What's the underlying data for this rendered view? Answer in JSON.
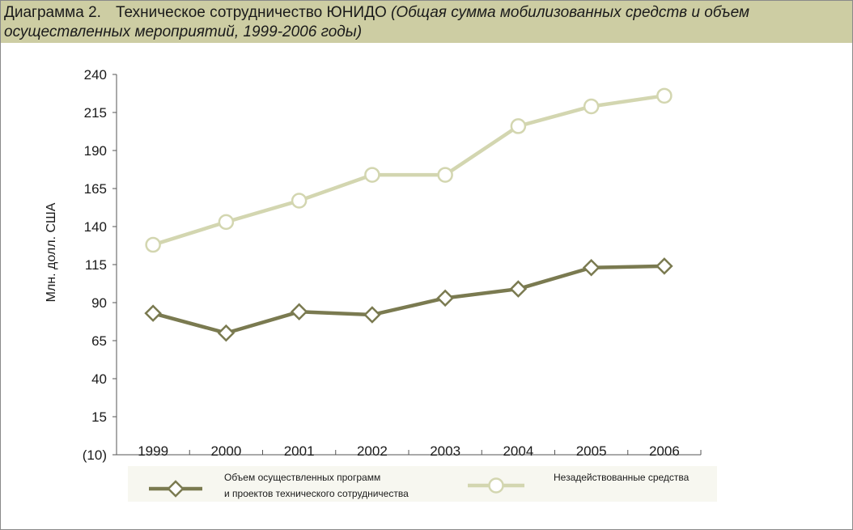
{
  "title": {
    "number": "Диаграмма 2.",
    "main": "Техническое сотрудничество ЮНИДО",
    "subtitle": "(Общая сумма мобилизованных средств и объем осуществленных мероприятий, 1999-2006 годы)"
  },
  "colors": {
    "dark_series": "#7a7a50",
    "light_series": "#d3d6b0",
    "legend_bg": "#f7f7f0",
    "title_bg": "#cdcda3"
  },
  "chart_data": {
    "type": "line",
    "title": "",
    "ylabel": "Млн. долл. США",
    "xlabel": "",
    "categories": [
      "1999",
      "2000",
      "2001",
      "2002",
      "2003",
      "2004",
      "2005",
      "2006"
    ],
    "y_ticks": [
      -10,
      15,
      40,
      65,
      90,
      115,
      140,
      165,
      190,
      215,
      240
    ],
    "y_tick_labels": [
      "(10)",
      "15",
      "40",
      "65",
      "90",
      "115",
      "140",
      "165",
      "190",
      "215",
      "240"
    ],
    "ylim": [
      -10,
      240
    ],
    "grid": false,
    "legend_position": "bottom",
    "series": [
      {
        "name": "Объем осуществленных программ и проектов технического сотрудничества",
        "legend_lines": [
          "Объем осуществленных программ",
          "и проектов технического сотрудничества"
        ],
        "marker": "diamond",
        "color": "#7a7a50",
        "values": [
          83,
          70,
          84,
          82,
          93,
          99,
          113,
          114
        ]
      },
      {
        "name": "Незадействованные средства",
        "legend_lines": [
          "Незадействованные средства"
        ],
        "marker": "circle",
        "color": "#d3d6b0",
        "values": [
          128,
          143,
          157,
          174,
          174,
          206,
          219,
          226
        ]
      }
    ]
  }
}
